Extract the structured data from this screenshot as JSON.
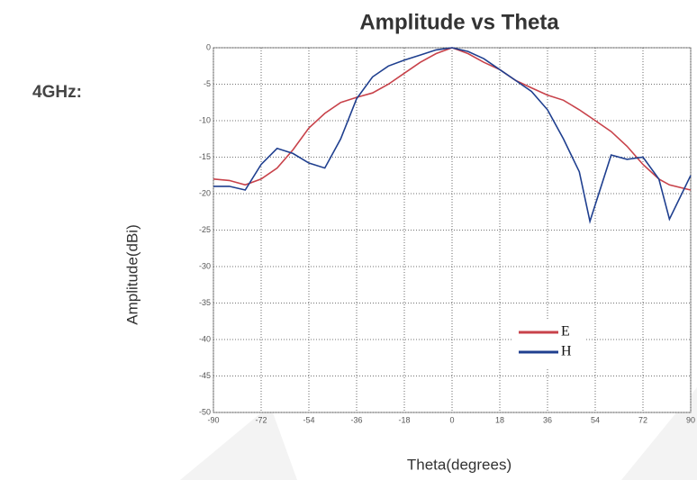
{
  "chart_data": {
    "type": "line",
    "title": "Amplitude vs Theta",
    "subtitle": "4GHz:",
    "x_label": "Theta(degrees)",
    "y_label": "Amplitude(dBi)",
    "x": [
      -90,
      -84,
      -78,
      -72,
      -66,
      -60,
      -54,
      -48,
      -42,
      -36,
      -30,
      -24,
      -18,
      -12,
      -6,
      0,
      6,
      12,
      18,
      24,
      30,
      36,
      42,
      48,
      52,
      60,
      66,
      72,
      78,
      82,
      90
    ],
    "series": [
      {
        "name": "E",
        "color": "#c8424a",
        "values": [
          -18,
          -18.2,
          -18.8,
          -18,
          -16.5,
          -14,
          -11,
          -9,
          -7.5,
          -6.8,
          -6.2,
          -5,
          -3.5,
          -2,
          -0.8,
          0,
          -0.8,
          -2,
          -3,
          -4.5,
          -5.5,
          -6.5,
          -7.2,
          -8.5,
          -9.5,
          -11.5,
          -13.5,
          -16,
          -18,
          -18.8,
          -19.5
        ]
      },
      {
        "name": "H",
        "color": "#1f3f8f",
        "values": [
          -19,
          -19,
          -19.5,
          -16,
          -13.8,
          -14.5,
          -15.8,
          -16.5,
          -12.5,
          -7,
          -4,
          -2.5,
          -1.7,
          -1,
          -0.3,
          0,
          -0.5,
          -1.5,
          -3,
          -4.5,
          -6,
          -8.5,
          -12.5,
          -17,
          -23.8,
          -14.7,
          -15.3,
          -15,
          -18,
          -23.5,
          -17.5
        ]
      }
    ],
    "xlim": [
      -90,
      90
    ],
    "xticks": [
      -90,
      -72,
      -54,
      -36,
      -18,
      0,
      18,
      36,
      54,
      72,
      90
    ],
    "ylim": [
      -50,
      0
    ],
    "yticks": [
      0,
      -5,
      -10,
      -15,
      -20,
      -25,
      -30,
      -35,
      -40,
      -45,
      -50
    ],
    "grid": true,
    "legend": "lower right"
  }
}
